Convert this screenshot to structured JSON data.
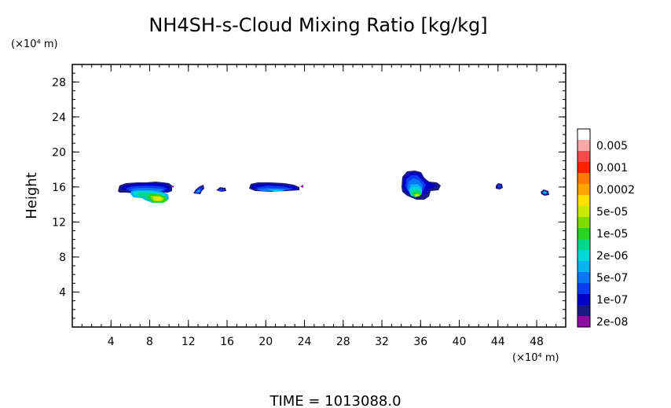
{
  "chart_data": {
    "type": "heatmap",
    "title": "NH4SH-s-Cloud Mixing Ratio [kg/kg]",
    "ylabel": "Height",
    "x_unit_label": "(×10⁴ m)",
    "y_unit_label": "(×10⁴ m)",
    "footer": "TIME = 1013088.0",
    "xlim": [
      0,
      51
    ],
    "ylim": [
      0,
      30
    ],
    "x_ticks": [
      4,
      8,
      12,
      16,
      20,
      24,
      28,
      32,
      36,
      40,
      44,
      48
    ],
    "y_ticks": [
      4,
      8,
      12,
      16,
      20,
      24,
      28
    ],
    "x_minor_step": 1,
    "y_minor_step": 1,
    "colorbar": {
      "labels": [
        "0.005",
        "0.001",
        "0.0002",
        "5e-05",
        "1e-05",
        "2e-06",
        "5e-07",
        "1e-07",
        "2e-08"
      ],
      "colors": [
        "#ffffff",
        "#f9a8a8",
        "#f44a4a",
        "#ff2200",
        "#ff7a00",
        "#ffa400",
        "#ffe000",
        "#c8ea00",
        "#7edc00",
        "#28d21e",
        "#00d88c",
        "#00d8d8",
        "#0ab4f0",
        "#0a78f5",
        "#0a3cf0",
        "#0000c8",
        "#1a1a82",
        "#8a0fa0"
      ]
    },
    "cloud_features": [
      {
        "x": [
          4.8,
          10.5
        ],
        "y": [
          14.6,
          16.6
        ],
        "peak_level": "1e-05 to 5e-05"
      },
      {
        "x": [
          12.4,
          13.6
        ],
        "y": [
          15.0,
          16.4
        ],
        "peak_level": "5e-07"
      },
      {
        "x": [
          15.2,
          16.3
        ],
        "y": [
          15.4,
          16.0
        ],
        "peak_level": "1e-07"
      },
      {
        "x": [
          18.3,
          24.0
        ],
        "y": [
          15.5,
          16.5
        ],
        "peak_level": "2e-06"
      },
      {
        "x": [
          34.2,
          38.0
        ],
        "y": [
          14.8,
          17.8
        ],
        "peak_level": "1e-05 to 5e-05"
      },
      {
        "x": [
          43.8,
          44.6
        ],
        "y": [
          15.7,
          16.3
        ],
        "peak_level": "1e-07"
      },
      {
        "x": [
          48.6,
          49.5
        ],
        "y": [
          15.0,
          15.6
        ],
        "peak_level": "5e-07"
      }
    ]
  }
}
